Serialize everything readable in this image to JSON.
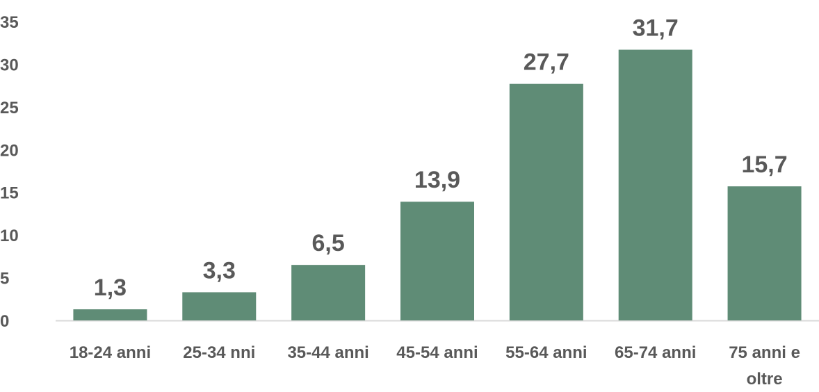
{
  "chart_data": {
    "type": "bar",
    "categories": [
      "18-24 anni",
      "25-34 nni",
      "35-44 anni",
      "45-54 anni",
      "55-64 anni",
      "65-74 anni",
      "75 anni e oltre"
    ],
    "category_lines": [
      [
        "18-24 anni"
      ],
      [
        "25-34 nni"
      ],
      [
        "35-44 anni"
      ],
      [
        "45-54 anni"
      ],
      [
        "55-64 anni"
      ],
      [
        "65-74 anni"
      ],
      [
        "75 anni e",
        "oltre"
      ]
    ],
    "values": [
      1.3,
      3.3,
      6.5,
      13.9,
      27.7,
      31.7,
      15.7
    ],
    "value_labels": [
      "1,3",
      "3,3",
      "6,5",
      "13,9",
      "27,7",
      "31,7",
      "15,7"
    ],
    "yticks": [
      "0",
      "5",
      "10",
      "15",
      "20",
      "25",
      "30",
      "35"
    ],
    "ylim": [
      0,
      35
    ],
    "bar_color": "#5f8c76",
    "axis_color": "#d9d9d9",
    "text_color": "#595959",
    "grid": false,
    "legend": "none",
    "title": "",
    "xlabel": "",
    "ylabel": ""
  }
}
